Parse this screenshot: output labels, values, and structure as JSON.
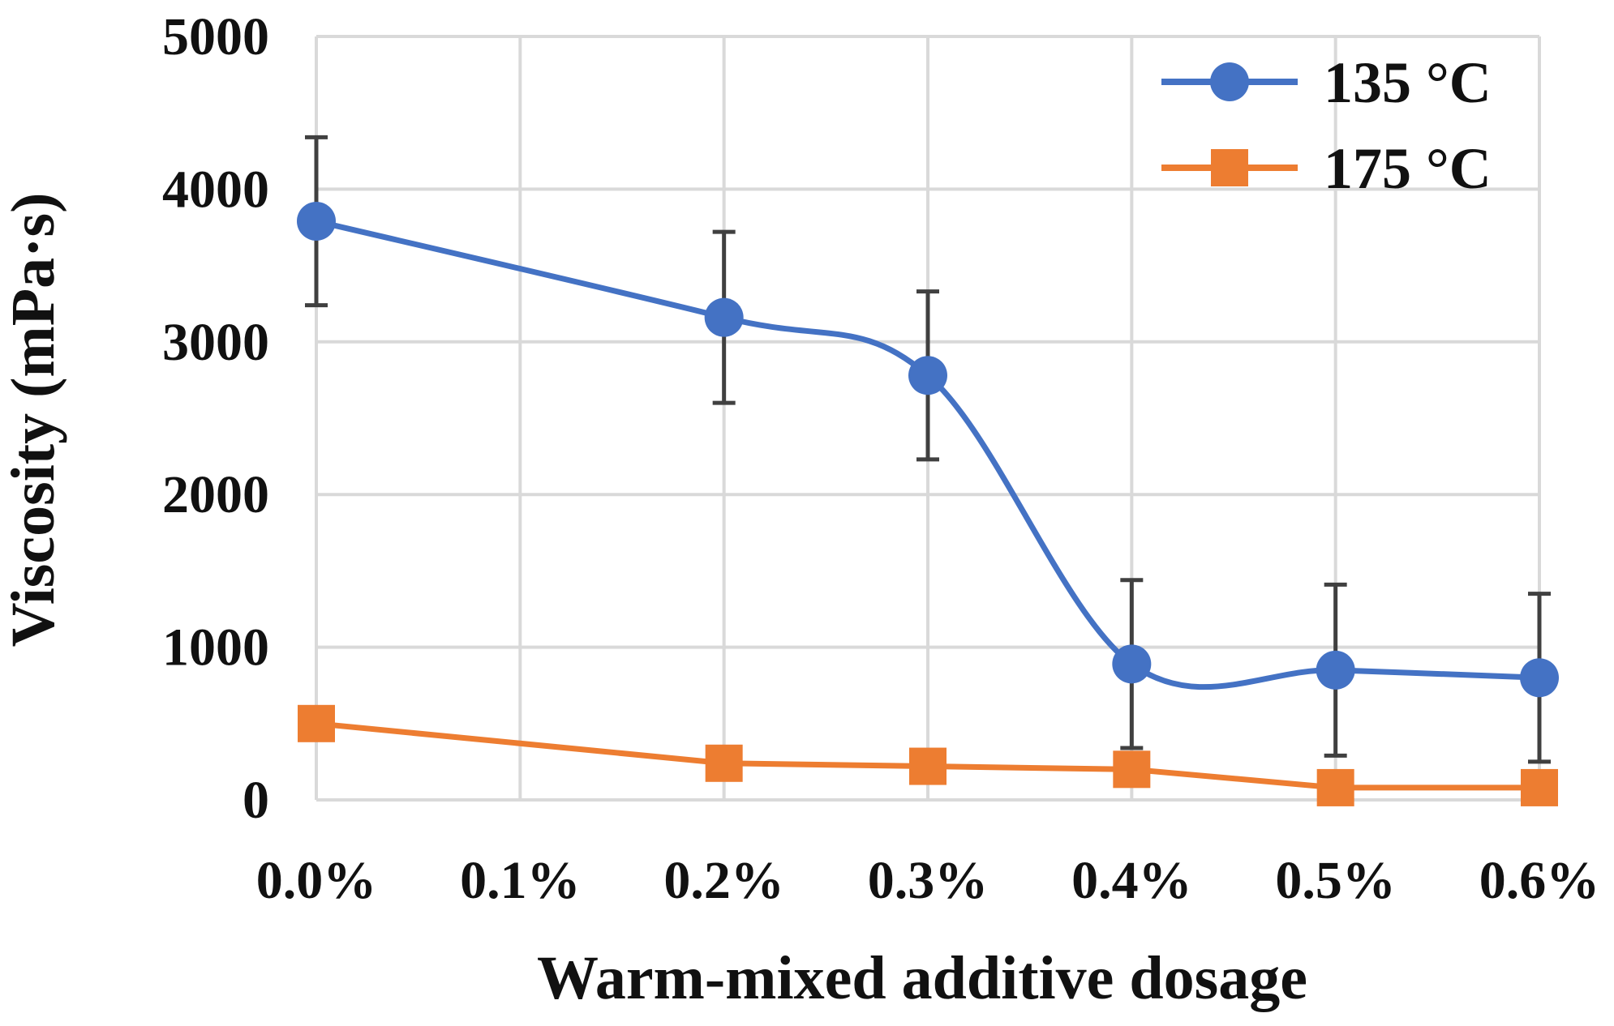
{
  "chart_data": {
    "type": "line",
    "title": "",
    "xlabel": "Warm-mixed additive dosage",
    "ylabel": "Viscosity (mPa·s)",
    "x_positions": [
      0.0,
      0.1,
      0.2,
      0.3,
      0.4,
      0.5,
      0.6
    ],
    "x_tick_labels": [
      "0.0%",
      "0.1%",
      "0.2%",
      "0.3%",
      "0.4%",
      "0.5%",
      "0.6%"
    ],
    "xlim": [
      0.0,
      0.6
    ],
    "ylim": [
      0,
      5000
    ],
    "y_ticks": [
      0,
      1000,
      2000,
      3000,
      4000,
      5000
    ],
    "y_tick_labels": [
      "0",
      "1000",
      "2000",
      "3000",
      "4000",
      "5000"
    ],
    "grid": true,
    "legend_position": "top-right",
    "series": [
      {
        "name": "135 °C",
        "color": "#4472C4",
        "marker": "circle",
        "smooth": true,
        "x": [
          0.0,
          0.2,
          0.3,
          0.4,
          0.5,
          0.6
        ],
        "values": [
          3790,
          3160,
          2780,
          890,
          850,
          800
        ],
        "error": [
          550,
          560,
          550,
          550,
          560,
          550
        ]
      },
      {
        "name": "175 °C",
        "color": "#ED7D31",
        "marker": "square",
        "smooth": false,
        "x": [
          0.0,
          0.2,
          0.3,
          0.4,
          0.5,
          0.6
        ],
        "values": [
          500,
          240,
          220,
          200,
          80,
          80
        ]
      }
    ]
  }
}
